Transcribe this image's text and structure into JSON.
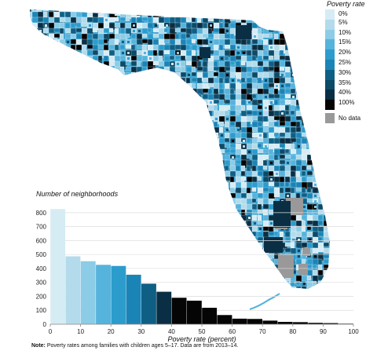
{
  "legend": {
    "title": "Poverty rate",
    "items": [
      {
        "label": "0%",
        "color": "#d6ecf4"
      },
      {
        "label": "5%",
        "color": "#b4dbeb"
      },
      {
        "label": "10%",
        "color": "#8ccce6"
      },
      {
        "label": "15%",
        "color": "#56b3dc"
      },
      {
        "label": "20%",
        "color": "#2c9ccd"
      },
      {
        "label": "25%",
        "color": "#1b84b6"
      },
      {
        "label": "30%",
        "color": "#0f5f85"
      },
      {
        "label": "35%",
        "color": "#0c4a68"
      },
      {
        "label": "40%",
        "color": "#0a2f44"
      },
      {
        "label": "100%",
        "color": "#050505"
      }
    ],
    "no_data": {
      "label": "No data",
      "color": "#999999"
    }
  },
  "map": {
    "state": "Florida"
  },
  "chart_data": {
    "type": "bar",
    "title": "Number of neighborhoods",
    "xlabel": "Poverty rate (percent)",
    "ylabel": "",
    "categories": [
      "0-5",
      "5-10",
      "10-15",
      "15-20",
      "20-25",
      "25-30",
      "30-35",
      "35-40",
      "40-45",
      "45-50",
      "50-55",
      "55-60",
      "60-65",
      "65-70",
      "70-75",
      "75-80",
      "80-85",
      "85-90",
      "90-95",
      "95-100"
    ],
    "values": [
      826,
      487,
      452,
      426,
      418,
      355,
      291,
      233,
      190,
      169,
      118,
      66,
      40,
      38,
      26,
      17,
      15,
      10,
      8,
      4
    ],
    "bar_colors": [
      "#d6ecf4",
      "#b4dbeb",
      "#8ccce6",
      "#56b3dc",
      "#2c9ccd",
      "#1b84b6",
      "#0f5f85",
      "#0a2f44",
      "#050505",
      "#050505",
      "#050505",
      "#050505",
      "#050505",
      "#050505",
      "#050505",
      "#050505",
      "#050505",
      "#050505",
      "#050505",
      "#050505"
    ],
    "xlim": [
      0,
      100
    ],
    "ylim": [
      0,
      850
    ],
    "xticks": [
      0,
      10,
      20,
      30,
      40,
      50,
      60,
      70,
      80,
      90,
      100
    ],
    "yticks": [
      0,
      100,
      200,
      300,
      400,
      500,
      600,
      700,
      800
    ],
    "grid": true
  },
  "note": {
    "bold": "Note:",
    "text": " Poverty rates among families with children ages 5–17. Data are from 2013–14."
  }
}
